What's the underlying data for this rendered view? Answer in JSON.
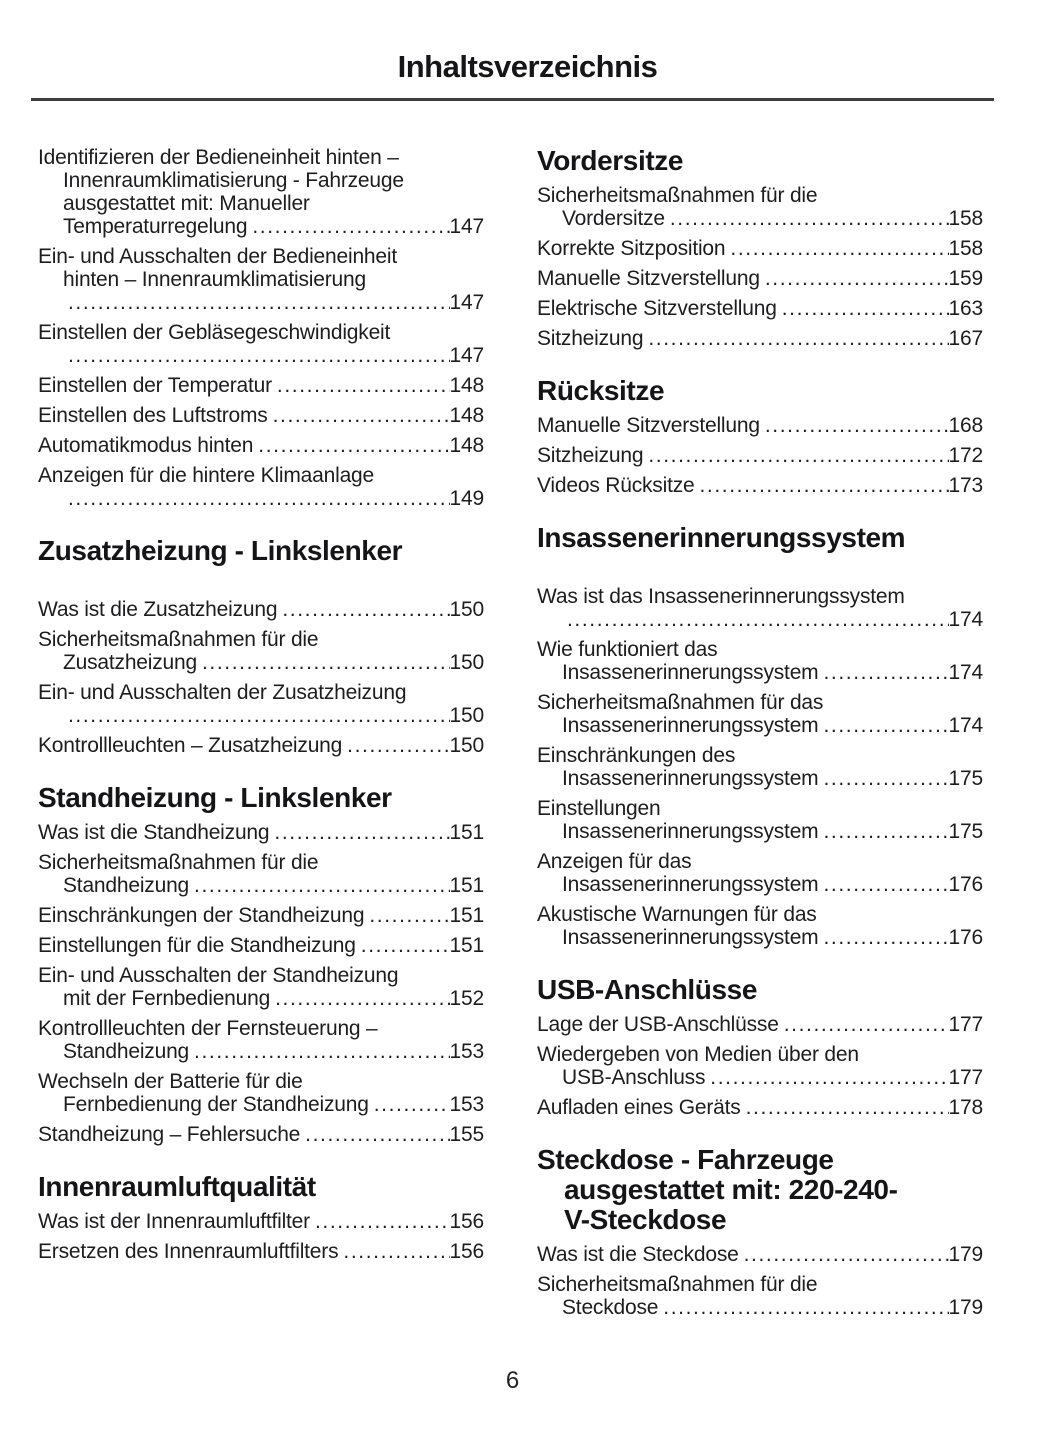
{
  "page": {
    "title": "Inhaltsverzeichnis",
    "page_number": "6"
  },
  "columns": {
    "left": [
      {
        "heading_lines": [],
        "gap_after_heading": false,
        "entries": [
          {
            "lines": [
              "Identifizieren der Bedieneinheit hinten –",
              "Innenraumklimatisierung - Fahrzeuge",
              "ausgestattet mit: Manueller",
              "Temperaturregelung"
            ],
            "page": "147"
          },
          {
            "lines": [
              "Ein- und Ausschalten der Bedieneinheit",
              "hinten – Innenraumklimatisierung",
              ""
            ],
            "page": "147"
          },
          {
            "lines": [
              "Einstellen der Gebläsegeschwindigkeit",
              ""
            ],
            "page": "147"
          },
          {
            "lines": [
              "Einstellen der Temperatur"
            ],
            "page": "148"
          },
          {
            "lines": [
              "Einstellen des Luftstroms"
            ],
            "page": "148"
          },
          {
            "lines": [
              "Automatikmodus hinten"
            ],
            "page": "148"
          },
          {
            "lines": [
              "Anzeigen für die hintere Klimaanlage",
              ""
            ],
            "page": "149"
          }
        ]
      },
      {
        "heading_lines": [
          "Zusatzheizung - Linkslenker"
        ],
        "gap_after_heading": true,
        "entries": [
          {
            "lines": [
              "Was ist die Zusatzheizung"
            ],
            "page": "150"
          },
          {
            "lines": [
              "Sicherheitsmaßnahmen für die",
              "Zusatzheizung"
            ],
            "page": "150"
          },
          {
            "lines": [
              "Ein- und Ausschalten der Zusatzheizung",
              ""
            ],
            "page": "150"
          },
          {
            "lines": [
              "Kontrollleuchten – Zusatzheizung"
            ],
            "page": "150"
          }
        ]
      },
      {
        "heading_lines": [
          "Standheizung - Linkslenker"
        ],
        "gap_after_heading": false,
        "entries": [
          {
            "lines": [
              "Was ist die Standheizung"
            ],
            "page": "151"
          },
          {
            "lines": [
              "Sicherheitsmaßnahmen für die",
              "Standheizung"
            ],
            "page": "151"
          },
          {
            "lines": [
              "Einschränkungen der Standheizung"
            ],
            "page": "151"
          },
          {
            "lines": [
              "Einstellungen für die Standheizung"
            ],
            "page": "151"
          },
          {
            "lines": [
              "Ein- und Ausschalten der Standheizung",
              "mit der Fernbedienung"
            ],
            "page": "152"
          },
          {
            "lines": [
              "Kontrollleuchten der Fernsteuerung –",
              "Standheizung"
            ],
            "page": "153"
          },
          {
            "lines": [
              "Wechseln der Batterie für die",
              "Fernbedienung der Standheizung"
            ],
            "page": "153"
          },
          {
            "lines": [
              "Standheizung – Fehlersuche"
            ],
            "page": "155"
          }
        ]
      },
      {
        "heading_lines": [
          "Innenraumluftqualität"
        ],
        "gap_after_heading": false,
        "entries": [
          {
            "lines": [
              "Was ist der Innenraumluftfilter"
            ],
            "page": "156"
          },
          {
            "lines": [
              "Ersetzen des Innenraumluftfilters"
            ],
            "page": "156"
          }
        ]
      }
    ],
    "right": [
      {
        "heading_lines": [
          "Vordersitze"
        ],
        "gap_after_heading": false,
        "entries": [
          {
            "lines": [
              "Sicherheitsmaßnahmen für die",
              "Vordersitze"
            ],
            "page": "158"
          },
          {
            "lines": [
              "Korrekte Sitzposition"
            ],
            "page": "158"
          },
          {
            "lines": [
              "Manuelle Sitzverstellung"
            ],
            "page": "159"
          },
          {
            "lines": [
              "Elektrische Sitzverstellung"
            ],
            "page": "163"
          },
          {
            "lines": [
              "Sitzheizung"
            ],
            "page": "167"
          }
        ]
      },
      {
        "heading_lines": [
          "Rücksitze"
        ],
        "gap_after_heading": false,
        "entries": [
          {
            "lines": [
              "Manuelle Sitzverstellung"
            ],
            "page": "168"
          },
          {
            "lines": [
              "Sitzheizung"
            ],
            "page": "172"
          },
          {
            "lines": [
              "Videos Rücksitze"
            ],
            "page": "173"
          }
        ]
      },
      {
        "heading_lines": [
          "Insassenerinnerungssystem"
        ],
        "gap_after_heading": true,
        "entries": [
          {
            "lines": [
              "Was ist das Insassenerinnerungssystem",
              ""
            ],
            "page": "174"
          },
          {
            "lines": [
              "Wie funktioniert das",
              "Insassenerinnerungssystem"
            ],
            "page": "174"
          },
          {
            "lines": [
              "Sicherheitsmaßnahmen für das",
              "Insassenerinnerungssystem"
            ],
            "page": "174"
          },
          {
            "lines": [
              "Einschränkungen des",
              "Insassenerinnerungssystem"
            ],
            "page": "175"
          },
          {
            "lines": [
              "Einstellungen",
              "Insassenerinnerungssystem"
            ],
            "page": "175"
          },
          {
            "lines": [
              "Anzeigen für das",
              "Insassenerinnerungssystem"
            ],
            "page": "176"
          },
          {
            "lines": [
              "Akustische Warnungen für das",
              "Insassenerinnerungssystem"
            ],
            "page": "176"
          }
        ]
      },
      {
        "heading_lines": [
          "USB-Anschlüsse"
        ],
        "gap_after_heading": false,
        "entries": [
          {
            "lines": [
              "Lage der USB-Anschlüsse"
            ],
            "page": "177"
          },
          {
            "lines": [
              "Wiedergeben von Medien über den",
              "USB-Anschluss"
            ],
            "page": "177"
          },
          {
            "lines": [
              "Aufladen eines Geräts"
            ],
            "page": "178"
          }
        ]
      },
      {
        "heading_lines": [
          "Steckdose - Fahrzeuge",
          "ausgestattet mit: 220-240-",
          "V-Steckdose"
        ],
        "gap_after_heading": false,
        "entries": [
          {
            "lines": [
              "Was ist die Steckdose"
            ],
            "page": "179"
          },
          {
            "lines": [
              "Sicherheitsmaßnahmen für die",
              "Steckdose"
            ],
            "page": "179"
          }
        ]
      }
    ]
  }
}
